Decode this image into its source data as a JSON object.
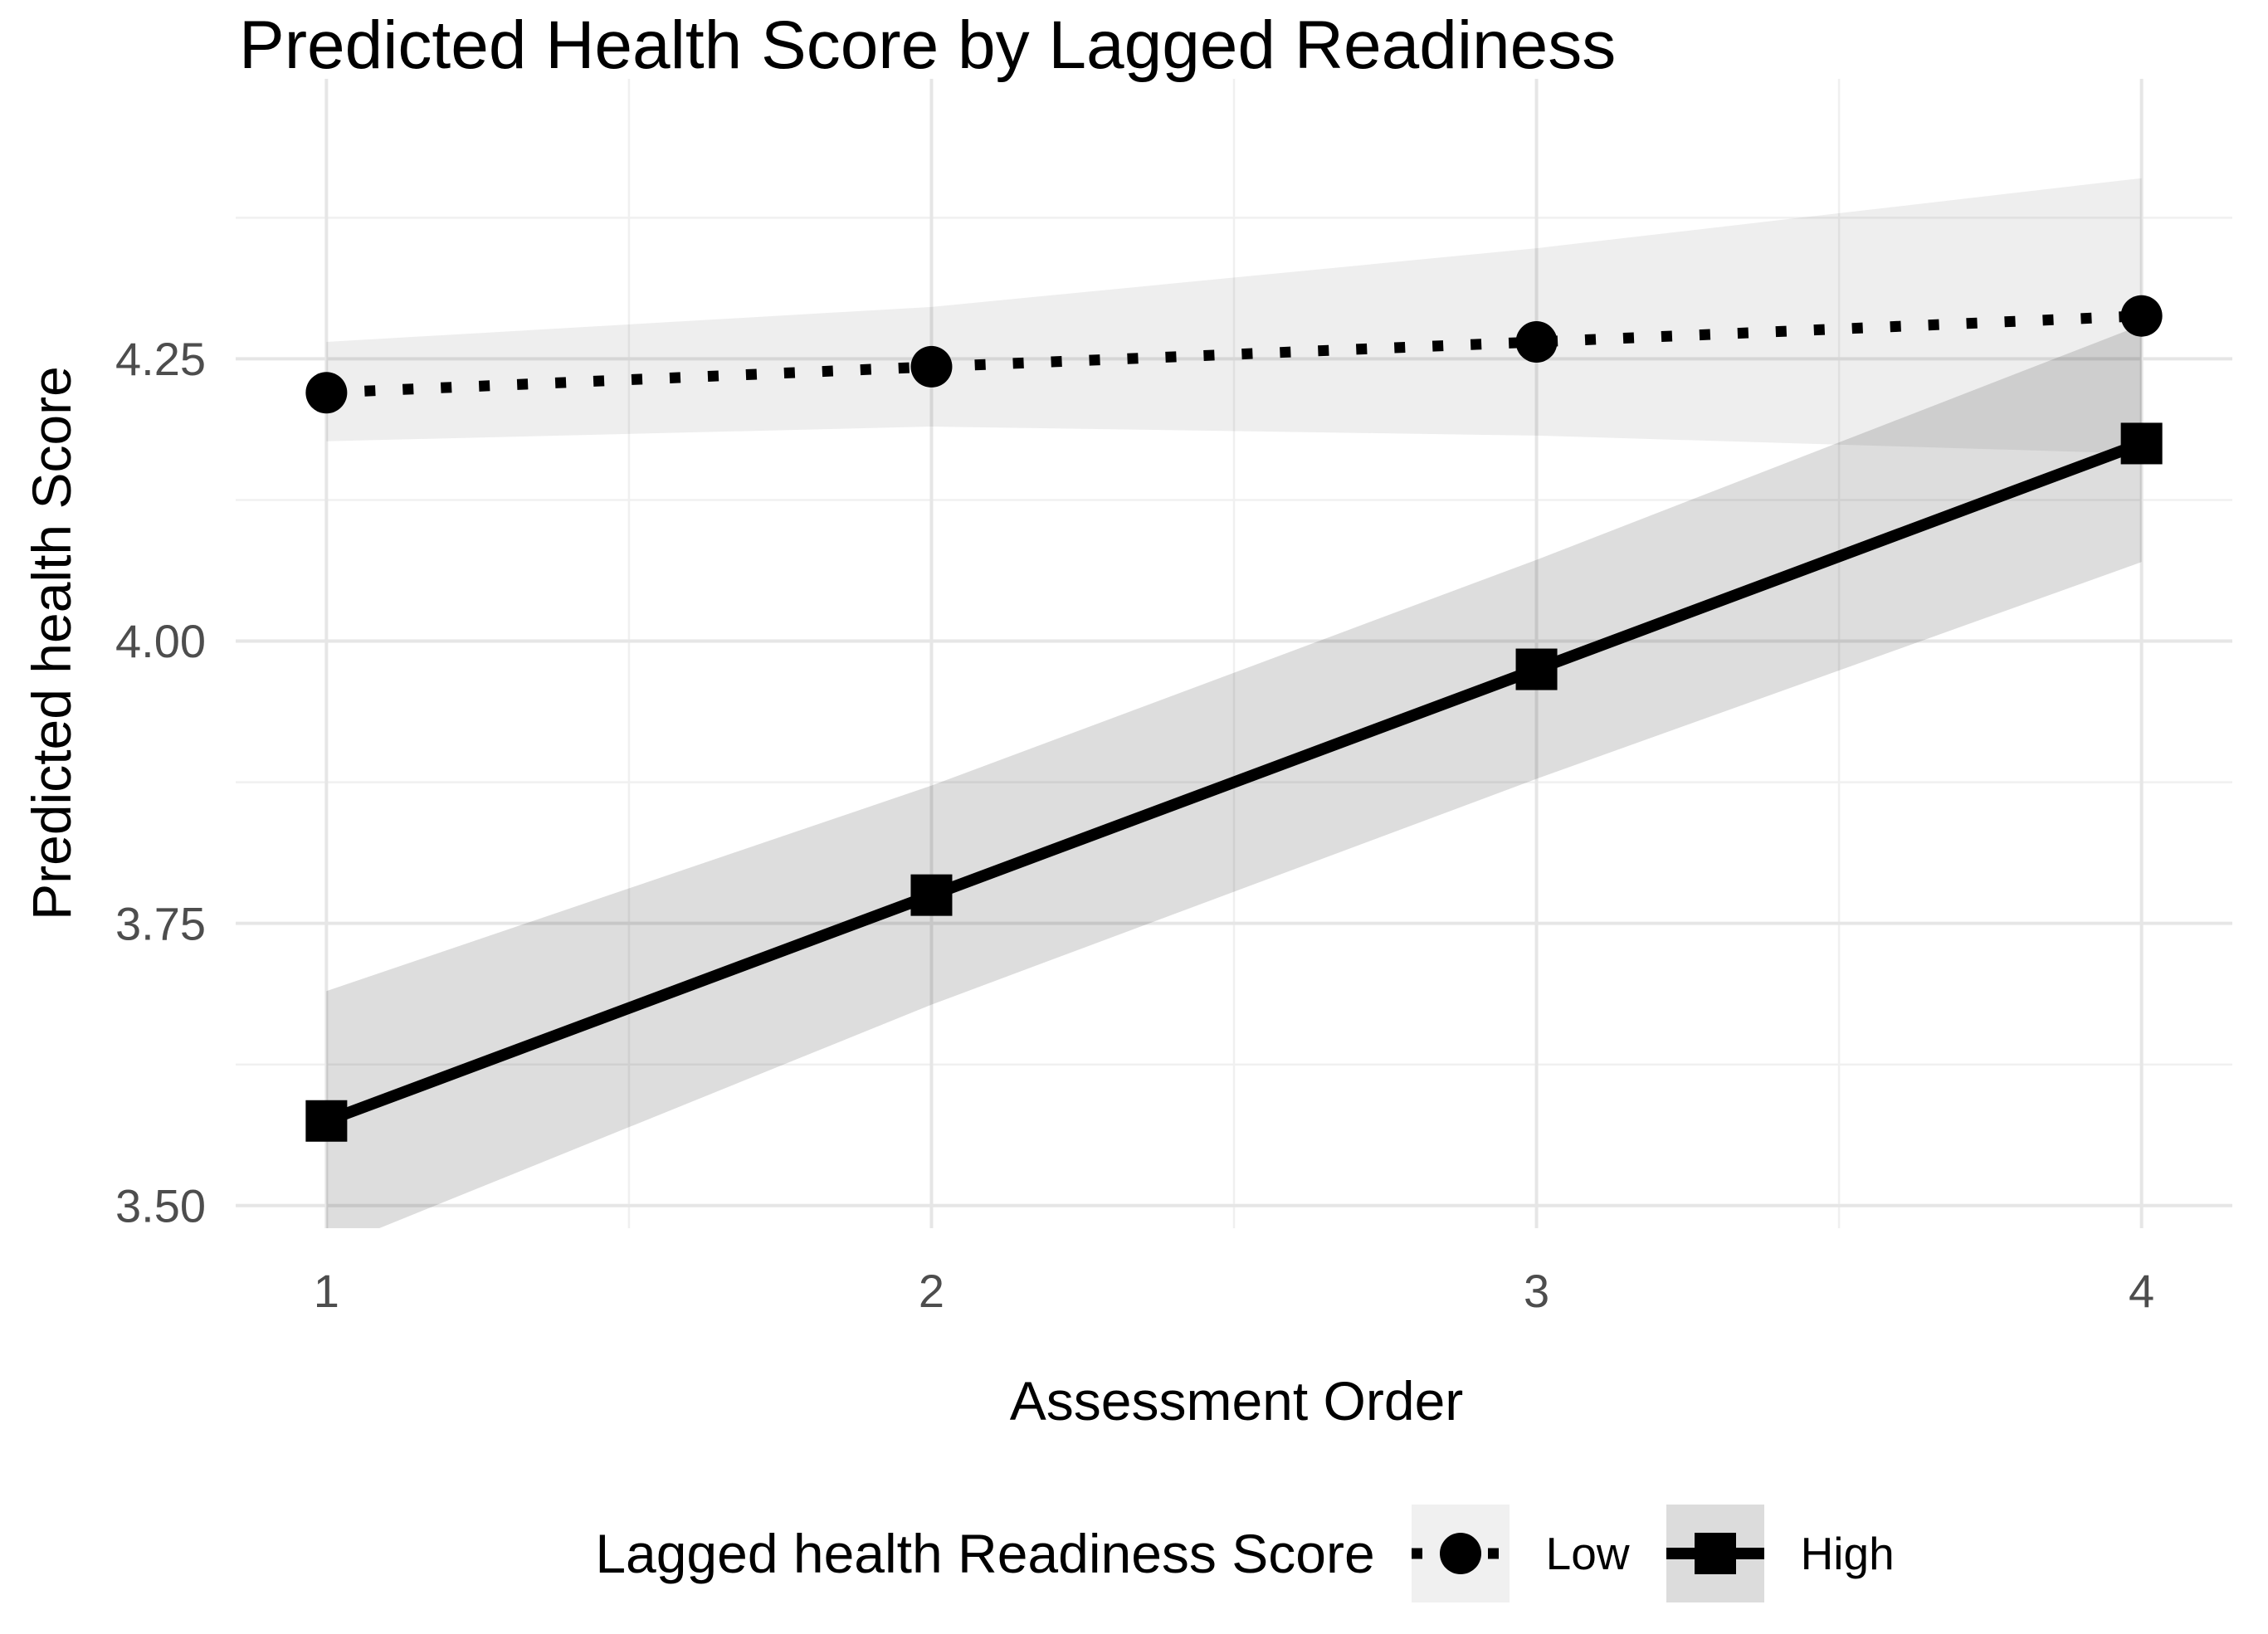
{
  "chart_data": {
    "type": "line",
    "title": "Predicted Health Score by Lagged Readiness",
    "xlabel": "Assessment Order",
    "ylabel": "Predicted health Score",
    "x": [
      1,
      2,
      3,
      4
    ],
    "xlim": [
      0.85,
      4.15
    ],
    "ylim": [
      3.48,
      4.498
    ],
    "grid_on": true,
    "x_ticks": [
      {
        "value": 1,
        "label": "1"
      },
      {
        "value": 2,
        "label": "2"
      },
      {
        "value": 3,
        "label": "3"
      },
      {
        "value": 4,
        "label": "4"
      }
    ],
    "y_ticks": [
      {
        "value": 3.5,
        "label": "3.50"
      },
      {
        "value": 3.75,
        "label": "3.75"
      },
      {
        "value": 4.0,
        "label": "4.00"
      },
      {
        "value": 4.25,
        "label": "4.25"
      }
    ],
    "x_minor": [
      1.5,
      2.5,
      3.5
    ],
    "y_minor": [
      3.625,
      3.875,
      4.125,
      4.375
    ],
    "grid": {
      "major_color": "#E6E6E6",
      "minor_color": "#F0F0F0"
    },
    "legend": {
      "title": "Lagged health Readiness Score",
      "position": "bottom"
    },
    "series": [
      {
        "name": "Low",
        "marker": "circle",
        "linetype": "dotted",
        "color": "#000000",
        "values": [
          4.22,
          4.243,
          4.265,
          4.288
        ],
        "ci_upper": [
          4.265,
          4.296,
          4.348,
          4.41
        ],
        "ci_lower": [
          4.177,
          4.19,
          4.182,
          4.166
        ],
        "band_fill": "#000000",
        "band_opacity": 0.065,
        "legend_key_fill": "#F0F0F0"
      },
      {
        "name": "High",
        "marker": "square",
        "linetype": "solid",
        "color": "#000000",
        "values": [
          3.575,
          3.775,
          3.975,
          4.175
        ],
        "ci_upper": [
          3.69,
          3.872,
          4.072,
          4.28
        ],
        "ci_lower": [
          3.461,
          3.678,
          3.878,
          4.07
        ],
        "band_fill": "#000000",
        "band_opacity": 0.135,
        "legend_key_fill": "#DCDCDC"
      }
    ],
    "text_colors": {
      "title": "#000000",
      "axis_title": "#000000",
      "tick": "#4D4D4D",
      "legend": "#000000"
    }
  }
}
